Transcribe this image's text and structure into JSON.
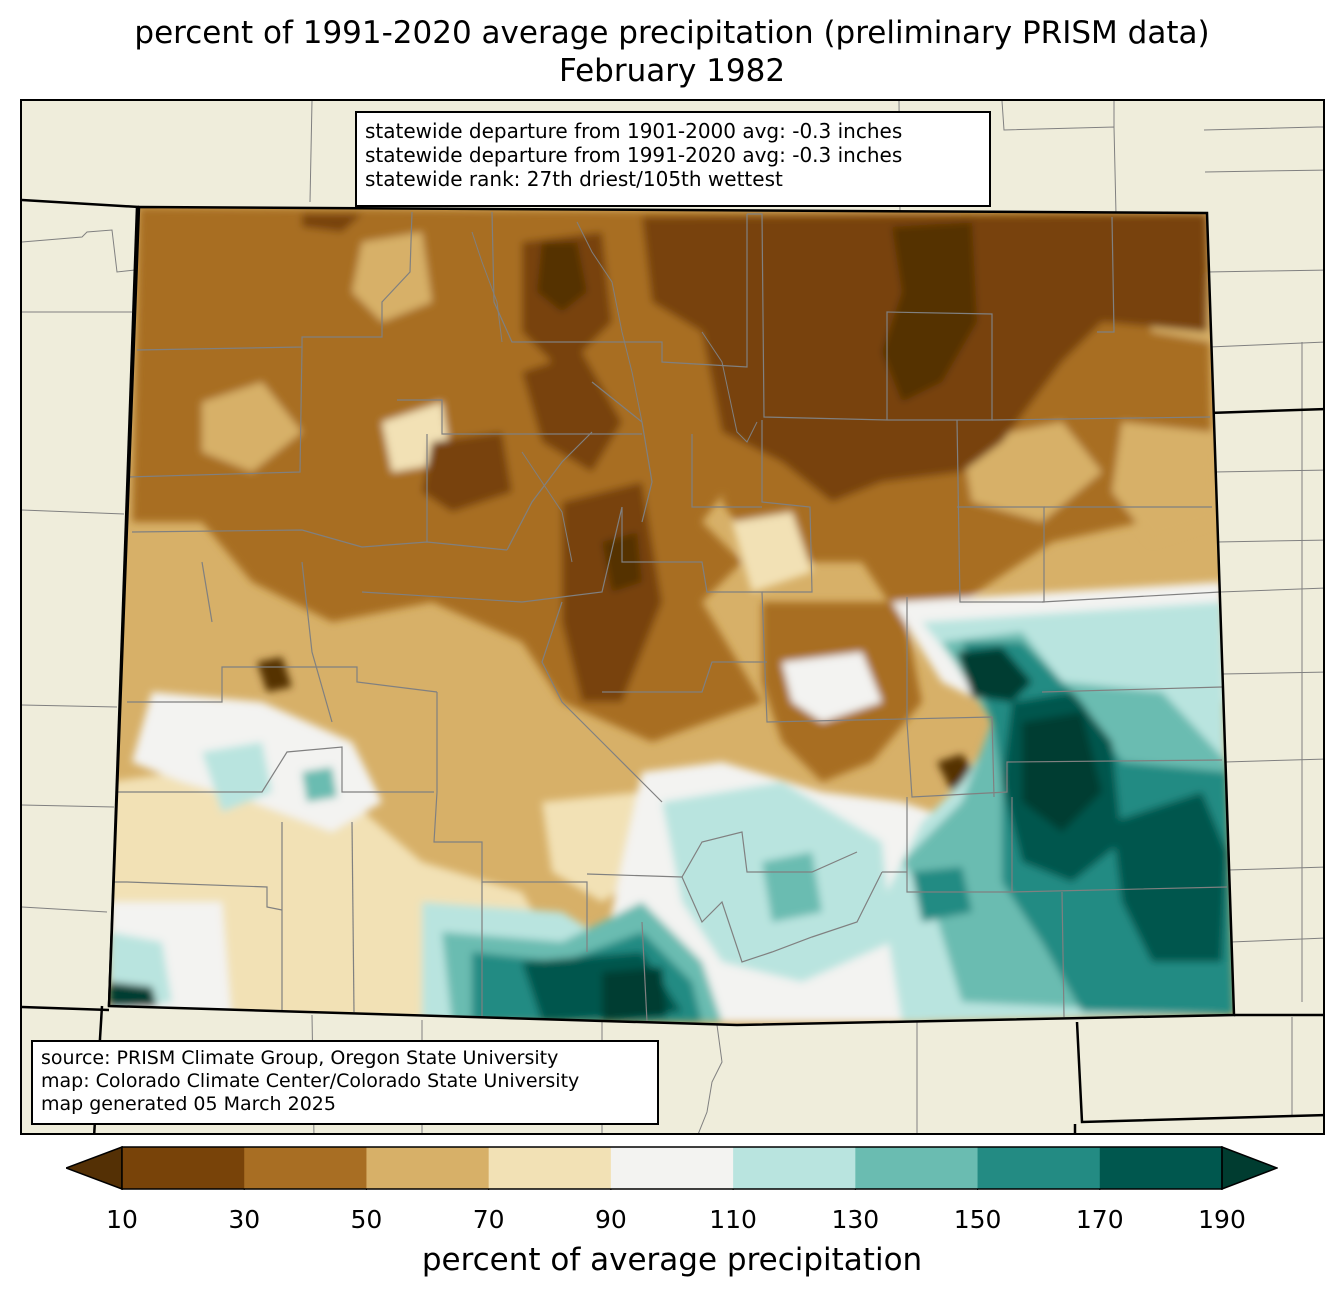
{
  "title": {
    "line1": "percent of 1991-2020 average precipitation (preliminary PRISM data)",
    "line2": "February 1982"
  },
  "stats": {
    "line1": "statewide departure from 1901-2000 avg: -0.3 inches",
    "line2": "statewide departure from 1991-2020 avg: -0.3 inches",
    "line3": "statewide rank: 27th driest/105th wettest"
  },
  "source": {
    "line1": "source: PRISM Climate Group, Oregon State University",
    "line2": "map: Colorado Climate Center/Colorado State University",
    "line3": "map generated 05 March 2025"
  },
  "legend": {
    "label": "percent of average precipitation",
    "ticks": [
      "10",
      "30",
      "50",
      "70",
      "90",
      "110",
      "130",
      "150",
      "170",
      "190"
    ],
    "bins": [
      {
        "range": "<10",
        "color": "#543005"
      },
      {
        "range": "10-30",
        "color": "#784309"
      },
      {
        "range": "30-50",
        "color": "#a86e23"
      },
      {
        "range": "50-70",
        "color": "#d7b068"
      },
      {
        "range": "70-90",
        "color": "#f2e1b5"
      },
      {
        "range": "90-110",
        "color": "#f3f3f1"
      },
      {
        "range": "110-130",
        "color": "#b9e4df"
      },
      {
        "range": "130-150",
        "color": "#6abcb1"
      },
      {
        "range": "150-170",
        "color": "#238b83"
      },
      {
        "range": "170-190",
        "color": "#00574e"
      },
      {
        "range": ">190",
        "color": "#003c30"
      }
    ]
  },
  "map": {
    "background_color": "#efeddb",
    "state_border_color": "#000000",
    "county_line_color": "#808080"
  }
}
